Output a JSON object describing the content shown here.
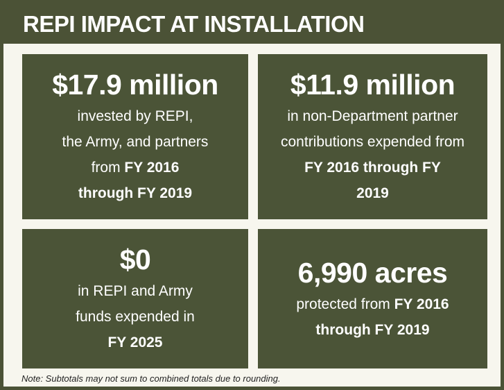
{
  "header": {
    "title": "REPI IMPACT AT INSTALLATION"
  },
  "cards": [
    {
      "headline": "$17.9 million",
      "lines": [
        [
          {
            "text": "invested by REPI,"
          }
        ],
        [
          {
            "text": "the Army, and partners"
          }
        ],
        [
          {
            "text": "from "
          },
          {
            "text": "FY 2016",
            "bold": true
          }
        ],
        [
          {
            "text": "through FY 2019",
            "bold": true
          }
        ]
      ]
    },
    {
      "headline": "$11.9 million",
      "lines": [
        [
          {
            "text": "in non-Department partner"
          }
        ],
        [
          {
            "text": "contributions expended from"
          }
        ],
        [
          {
            "text": "FY 2016 through FY",
            "bold": true
          }
        ],
        [
          {
            "text": "2019",
            "bold": true
          }
        ]
      ]
    },
    {
      "headline": "$0",
      "lines": [
        [
          {
            "text": "in REPI and Army"
          }
        ],
        [
          {
            "text": "funds expended in"
          }
        ],
        [
          {
            "text": "FY 2025",
            "bold": true
          }
        ]
      ]
    },
    {
      "headline": "6,990 acres",
      "lines": [
        [
          {
            "text": "protected from "
          },
          {
            "text": "FY 2016",
            "bold": true
          }
        ],
        [
          {
            "text": "through FY 2019",
            "bold": true
          }
        ]
      ]
    }
  ],
  "note": "Note: Subtotals may not sum to combined totals due to rounding."
}
